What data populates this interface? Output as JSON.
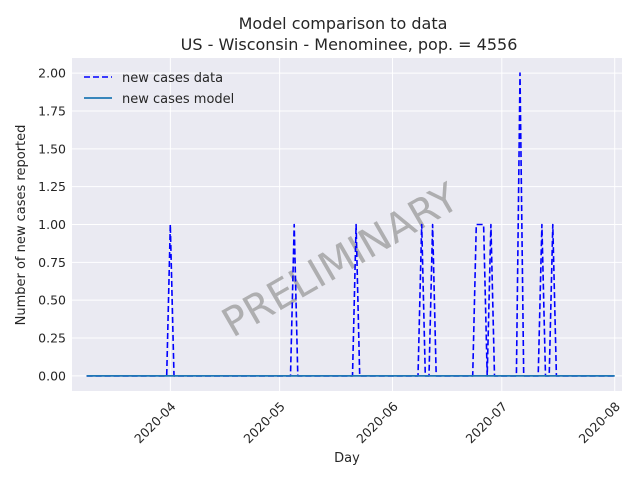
{
  "chart_data": {
    "type": "line",
    "title": "Model comparison to data",
    "subtitle": "US - Wisconsin - Menominee, pop. = 4556",
    "xlabel": "Day",
    "ylabel": "Number of new cases reported",
    "watermark": "PRELIMINARY",
    "grid": true,
    "legend_position": "top-left",
    "xlim": [
      "2020-03-05",
      "2020-08-03"
    ],
    "ylim": [
      -0.1,
      2.1
    ],
    "x_ticks": [
      "2020-04",
      "2020-05",
      "2020-06",
      "2020-07",
      "2020-08"
    ],
    "x_tick_dates": [
      "2020-04-01",
      "2020-05-01",
      "2020-06-01",
      "2020-07-01",
      "2020-08-01"
    ],
    "y_ticks": [
      "0.00",
      "0.25",
      "0.50",
      "0.75",
      "1.00",
      "1.25",
      "1.50",
      "1.75",
      "2.00"
    ],
    "y_tick_values": [
      0,
      0.25,
      0.5,
      0.75,
      1.0,
      1.25,
      1.5,
      1.75,
      2.0
    ],
    "series": [
      {
        "name": "new cases data",
        "color": "#0000ff",
        "style": "dashed",
        "x": [
          "2020-03-09",
          "2020-03-31",
          "2020-04-01",
          "2020-04-02",
          "2020-05-04",
          "2020-05-05",
          "2020-05-06",
          "2020-05-21",
          "2020-05-22",
          "2020-05-23",
          "2020-06-08",
          "2020-06-09",
          "2020-06-10",
          "2020-06-11",
          "2020-06-12",
          "2020-06-13",
          "2020-06-23",
          "2020-06-24",
          "2020-06-26",
          "2020-06-27",
          "2020-06-28",
          "2020-06-29",
          "2020-06-30",
          "2020-07-05",
          "2020-07-06",
          "2020-07-07",
          "2020-07-11",
          "2020-07-12",
          "2020-07-13",
          "2020-07-14",
          "2020-07-15",
          "2020-07-16",
          "2020-08-01"
        ],
        "y": [
          0,
          0,
          1,
          0,
          0,
          1,
          0,
          0,
          1,
          0,
          0,
          1,
          0,
          0,
          1,
          0,
          0,
          1,
          1,
          0,
          1,
          0,
          0,
          0,
          2,
          0,
          0,
          1,
          0,
          0,
          1,
          0,
          0
        ]
      },
      {
        "name": "new cases model",
        "color": "#1f77b4",
        "style": "solid",
        "x": [
          "2020-03-09",
          "2020-08-01"
        ],
        "y": [
          0,
          0
        ]
      }
    ]
  }
}
